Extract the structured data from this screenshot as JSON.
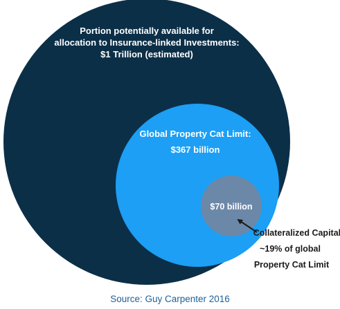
{
  "outer": {
    "line1": "Portion potentially available for",
    "line2": "allocation to Insurance-linked Investments:",
    "line3": "$1 Trillion (estimated)",
    "color": "#0c2f48"
  },
  "middle": {
    "title": "Global Property Cat Limit:",
    "value": "$367 billion",
    "color": "#1c9ff5"
  },
  "inner": {
    "value": "$70 billion",
    "color": "#6c88a8"
  },
  "callout": {
    "line1": "Collateralized Capital:",
    "line2": "~19% of global",
    "line3": "Property Cat Limit"
  },
  "source": "Source: Guy Carpenter 2016"
}
